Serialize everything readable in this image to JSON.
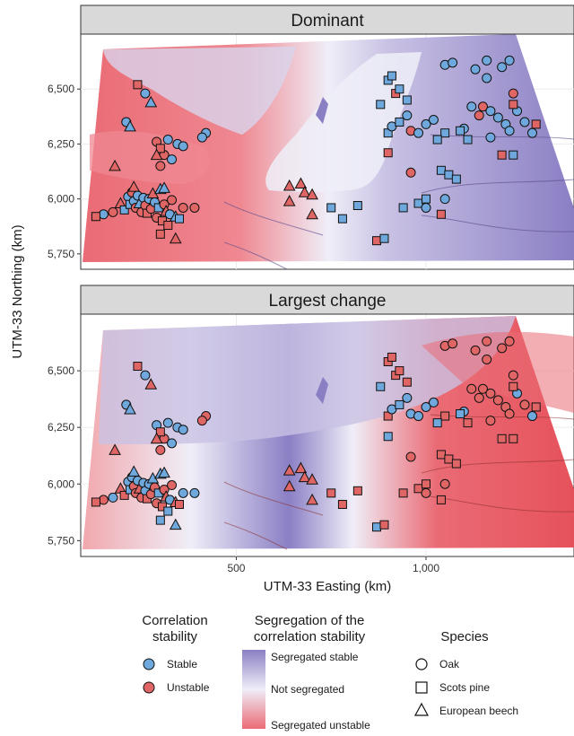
{
  "chart_data": {
    "type": "scatter",
    "panels": [
      {
        "title": "Dominant"
      },
      {
        "title": "Largest change"
      }
    ],
    "xlabel": "UTM-33 Easting (km)",
    "ylabel": "UTM-33 Northing (km)",
    "x_ticks": [
      {
        "value": 500,
        "label": "500"
      },
      {
        "value": 1000,
        "label": "1,000"
      }
    ],
    "y_ticks": [
      {
        "value": 6500,
        "label": "6,500"
      },
      {
        "value": 6250,
        "label": "6,250"
      },
      {
        "value": 6000,
        "label": "6,000"
      },
      {
        "value": 5750,
        "label": "5,750"
      }
    ],
    "xlim": [
      90,
      1390
    ],
    "ylim": [
      5680,
      6750
    ],
    "grid": true,
    "colors": {
      "stable": "#6fa8dc",
      "unstable": "#e06666",
      "segregated_stable": "#8b7fc4",
      "not_segregated": "#efeef8",
      "segregated_unstable": "#ea6b75"
    },
    "legend": {
      "stability": {
        "title": [
          "Correlation",
          "stability"
        ],
        "items": [
          {
            "label": "Stable",
            "key": "stable"
          },
          {
            "label": "Unstable",
            "key": "unstable"
          }
        ]
      },
      "segregation": {
        "title": [
          "Segregation of the",
          "correlation stability"
        ],
        "labels": [
          "Segregated stable",
          "Not segregated",
          "Segregated unstable"
        ]
      },
      "species": {
        "title": "Species",
        "items": [
          {
            "label": "Oak",
            "shape": "circle"
          },
          {
            "label": "Scots pine",
            "shape": "square"
          },
          {
            "label": "European beech",
            "shape": "triangle"
          }
        ]
      }
    },
    "points": [
      {
        "x": 260,
        "y": 6480,
        "sp": "circle",
        "s": [
          "stable",
          "stable"
        ]
      },
      {
        "x": 275,
        "y": 6440,
        "sp": "triangle",
        "s": [
          "stable",
          "unstable"
        ]
      },
      {
        "x": 210,
        "y": 6350,
        "sp": "circle",
        "s": [
          "stable",
          "stable"
        ]
      },
      {
        "x": 220,
        "y": 6330,
        "sp": "triangle",
        "s": [
          "stable",
          "stable"
        ]
      },
      {
        "x": 290,
        "y": 6260,
        "sp": "circle",
        "s": [
          "unstable",
          "stable"
        ]
      },
      {
        "x": 320,
        "y": 6270,
        "sp": "circle",
        "s": [
          "stable",
          "stable"
        ]
      },
      {
        "x": 345,
        "y": 6250,
        "sp": "circle",
        "s": [
          "stable",
          "stable"
        ]
      },
      {
        "x": 360,
        "y": 6240,
        "sp": "circle",
        "s": [
          "stable",
          "stable"
        ]
      },
      {
        "x": 310,
        "y": 6200,
        "sp": "circle",
        "s": [
          "unstable",
          "unstable"
        ]
      },
      {
        "x": 330,
        "y": 6180,
        "sp": "circle",
        "s": [
          "stable",
          "stable"
        ]
      },
      {
        "x": 300,
        "y": 6150,
        "sp": "circle",
        "s": [
          "unstable",
          "unstable"
        ]
      },
      {
        "x": 420,
        "y": 6300,
        "sp": "circle",
        "s": [
          "stable",
          "unstable"
        ]
      },
      {
        "x": 410,
        "y": 6280,
        "sp": "circle",
        "s": [
          "stable",
          "unstable"
        ]
      },
      {
        "x": 240,
        "y": 6520,
        "sp": "square",
        "s": [
          "unstable",
          "unstable"
        ]
      },
      {
        "x": 300,
        "y": 6230,
        "sp": "square",
        "s": [
          "unstable",
          "unstable"
        ]
      },
      {
        "x": 180,
        "y": 6150,
        "sp": "triangle",
        "s": [
          "unstable",
          "unstable"
        ]
      },
      {
        "x": 290,
        "y": 6200,
        "sp": "triangle",
        "s": [
          "unstable",
          "unstable"
        ]
      },
      {
        "x": 150,
        "y": 5930,
        "sp": "circle",
        "s": [
          "stable",
          "unstable"
        ]
      },
      {
        "x": 130,
        "y": 5920,
        "sp": "square",
        "s": [
          "unstable",
          "unstable"
        ]
      },
      {
        "x": 175,
        "y": 5940,
        "sp": "circle",
        "s": [
          "unstable",
          "stable"
        ]
      },
      {
        "x": 195,
        "y": 5980,
        "sp": "triangle",
        "s": [
          "unstable",
          "unstable"
        ]
      },
      {
        "x": 205,
        "y": 5950,
        "sp": "square",
        "s": [
          "stable",
          "unstable"
        ]
      },
      {
        "x": 215,
        "y": 6010,
        "sp": "circle",
        "s": [
          "stable",
          "stable"
        ]
      },
      {
        "x": 220,
        "y": 5975,
        "sp": "square",
        "s": [
          "stable",
          "stable"
        ]
      },
      {
        "x": 225,
        "y": 6030,
        "sp": "circle",
        "s": [
          "unstable",
          "stable"
        ]
      },
      {
        "x": 230,
        "y": 5990,
        "sp": "circle",
        "s": [
          "stable",
          "unstable"
        ]
      },
      {
        "x": 235,
        "y": 5960,
        "sp": "circle",
        "s": [
          "unstable",
          "unstable"
        ]
      },
      {
        "x": 240,
        "y": 6015,
        "sp": "circle",
        "s": [
          "stable",
          "stable"
        ]
      },
      {
        "x": 245,
        "y": 5980,
        "sp": "triangle",
        "s": [
          "stable",
          "unstable"
        ]
      },
      {
        "x": 250,
        "y": 5940,
        "sp": "circle",
        "s": [
          "unstable",
          "unstable"
        ]
      },
      {
        "x": 255,
        "y": 6005,
        "sp": "circle",
        "s": [
          "stable",
          "stable"
        ]
      },
      {
        "x": 260,
        "y": 5970,
        "sp": "circle",
        "s": [
          "unstable",
          "stable"
        ]
      },
      {
        "x": 265,
        "y": 5935,
        "sp": "square",
        "s": [
          "unstable",
          "unstable"
        ]
      },
      {
        "x": 270,
        "y": 6000,
        "sp": "circle",
        "s": [
          "stable",
          "stable"
        ]
      },
      {
        "x": 275,
        "y": 5955,
        "sp": "circle",
        "s": [
          "unstable",
          "unstable"
        ]
      },
      {
        "x": 280,
        "y": 6025,
        "sp": "triangle",
        "s": [
          "unstable",
          "stable"
        ]
      },
      {
        "x": 285,
        "y": 5985,
        "sp": "circle",
        "s": [
          "stable",
          "unstable"
        ]
      },
      {
        "x": 290,
        "y": 5915,
        "sp": "circle",
        "s": [
          "unstable",
          "unstable"
        ]
      },
      {
        "x": 295,
        "y": 5960,
        "sp": "square",
        "s": [
          "stable",
          "stable"
        ]
      },
      {
        "x": 300,
        "y": 6045,
        "sp": "triangle",
        "s": [
          "stable",
          "stable"
        ]
      },
      {
        "x": 305,
        "y": 5900,
        "sp": "square",
        "s": [
          "unstable",
          "unstable"
        ]
      },
      {
        "x": 310,
        "y": 5975,
        "sp": "circle",
        "s": [
          "unstable",
          "unstable"
        ]
      },
      {
        "x": 315,
        "y": 5945,
        "sp": "triangle",
        "s": [
          "unstable",
          "unstable"
        ]
      },
      {
        "x": 320,
        "y": 5880,
        "sp": "square",
        "s": [
          "unstable",
          "stable"
        ]
      },
      {
        "x": 325,
        "y": 5930,
        "sp": "circle",
        "s": [
          "stable",
          "stable"
        ]
      },
      {
        "x": 330,
        "y": 5995,
        "sp": "circle",
        "s": [
          "unstable",
          "unstable"
        ]
      },
      {
        "x": 340,
        "y": 5920,
        "sp": "triangle",
        "s": [
          "stable",
          "unstable"
        ]
      },
      {
        "x": 300,
        "y": 5840,
        "sp": "square",
        "s": [
          "unstable",
          "stable"
        ]
      },
      {
        "x": 340,
        "y": 5820,
        "sp": "triangle",
        "s": [
          "unstable",
          "stable"
        ]
      },
      {
        "x": 350,
        "y": 5910,
        "sp": "square",
        "s": [
          "stable",
          "unstable"
        ]
      },
      {
        "x": 360,
        "y": 5960,
        "sp": "circle",
        "s": [
          "unstable",
          "stable"
        ]
      },
      {
        "x": 390,
        "y": 5960,
        "sp": "circle",
        "s": [
          "unstable",
          "stable"
        ]
      },
      {
        "x": 230,
        "y": 6055,
        "sp": "triangle",
        "s": [
          "unstable",
          "stable"
        ]
      },
      {
        "x": 310,
        "y": 6050,
        "sp": "triangle",
        "s": [
          "stable",
          "stable"
        ]
      },
      {
        "x": 640,
        "y": 6060,
        "sp": "triangle",
        "s": [
          "unstable",
          "unstable"
        ]
      },
      {
        "x": 670,
        "y": 6070,
        "sp": "triangle",
        "s": [
          "unstable",
          "unstable"
        ]
      },
      {
        "x": 680,
        "y": 6030,
        "sp": "triangle",
        "s": [
          "unstable",
          "unstable"
        ]
      },
      {
        "x": 700,
        "y": 6020,
        "sp": "triangle",
        "s": [
          "unstable",
          "unstable"
        ]
      },
      {
        "x": 640,
        "y": 5990,
        "sp": "triangle",
        "s": [
          "unstable",
          "unstable"
        ]
      },
      {
        "x": 700,
        "y": 5930,
        "sp": "triangle",
        "s": [
          "unstable",
          "unstable"
        ]
      },
      {
        "x": 750,
        "y": 5960,
        "sp": "square",
        "s": [
          "stable",
          "unstable"
        ]
      },
      {
        "x": 780,
        "y": 5910,
        "sp": "square",
        "s": [
          "stable",
          "unstable"
        ]
      },
      {
        "x": 820,
        "y": 5970,
        "sp": "square",
        "s": [
          "stable",
          "unstable"
        ]
      },
      {
        "x": 870,
        "y": 5810,
        "sp": "square",
        "s": [
          "unstable",
          "stable"
        ]
      },
      {
        "x": 890,
        "y": 5820,
        "sp": "square",
        "s": [
          "stable",
          "unstable"
        ]
      },
      {
        "x": 940,
        "y": 5960,
        "sp": "square",
        "s": [
          "stable",
          "unstable"
        ]
      },
      {
        "x": 980,
        "y": 5980,
        "sp": "square",
        "s": [
          "stable",
          "unstable"
        ]
      },
      {
        "x": 1000,
        "y": 6000,
        "sp": "square",
        "s": [
          "stable",
          "unstable"
        ]
      },
      {
        "x": 1040,
        "y": 5930,
        "sp": "square",
        "s": [
          "unstable",
          "unstable"
        ]
      },
      {
        "x": 1000,
        "y": 5960,
        "sp": "circle",
        "s": [
          "stable",
          "unstable"
        ]
      },
      {
        "x": 1050,
        "y": 6000,
        "sp": "circle",
        "s": [
          "stable",
          "unstable"
        ]
      },
      {
        "x": 960,
        "y": 6120,
        "sp": "circle",
        "s": [
          "unstable",
          "unstable"
        ]
      },
      {
        "x": 1040,
        "y": 6130,
        "sp": "square",
        "s": [
          "stable",
          "unstable"
        ]
      },
      {
        "x": 1060,
        "y": 6110,
        "sp": "square",
        "s": [
          "stable",
          "unstable"
        ]
      },
      {
        "x": 1080,
        "y": 6090,
        "sp": "square",
        "s": [
          "stable",
          "unstable"
        ]
      },
      {
        "x": 1200,
        "y": 6200,
        "sp": "square",
        "s": [
          "unstable",
          "unstable"
        ]
      },
      {
        "x": 1230,
        "y": 6200,
        "sp": "square",
        "s": [
          "stable",
          "unstable"
        ]
      },
      {
        "x": 900,
        "y": 6210,
        "sp": "square",
        "s": [
          "unstable",
          "stable"
        ]
      },
      {
        "x": 900,
        "y": 6300,
        "sp": "square",
        "s": [
          "stable",
          "unstable"
        ]
      },
      {
        "x": 910,
        "y": 6330,
        "sp": "circle",
        "s": [
          "stable",
          "stable"
        ]
      },
      {
        "x": 930,
        "y": 6350,
        "sp": "square",
        "s": [
          "stable",
          "stable"
        ]
      },
      {
        "x": 950,
        "y": 6380,
        "sp": "circle",
        "s": [
          "stable",
          "stable"
        ]
      },
      {
        "x": 960,
        "y": 6310,
        "sp": "circle",
        "s": [
          "unstable",
          "stable"
        ]
      },
      {
        "x": 980,
        "y": 6300,
        "sp": "circle",
        "s": [
          "stable",
          "stable"
        ]
      },
      {
        "x": 1000,
        "y": 6340,
        "sp": "circle",
        "s": [
          "stable",
          "stable"
        ]
      },
      {
        "x": 1020,
        "y": 6360,
        "sp": "circle",
        "s": [
          "stable",
          "stable"
        ]
      },
      {
        "x": 1050,
        "y": 6300,
        "sp": "square",
        "s": [
          "stable",
          "unstable"
        ]
      },
      {
        "x": 880,
        "y": 6430,
        "sp": "square",
        "s": [
          "stable",
          "stable"
        ]
      },
      {
        "x": 920,
        "y": 6480,
        "sp": "square",
        "s": [
          "unstable",
          "unstable"
        ]
      },
      {
        "x": 900,
        "y": 6540,
        "sp": "square",
        "s": [
          "stable",
          "unstable"
        ]
      },
      {
        "x": 910,
        "y": 6560,
        "sp": "square",
        "s": [
          "stable",
          "unstable"
        ]
      },
      {
        "x": 930,
        "y": 6500,
        "sp": "square",
        "s": [
          "stable",
          "unstable"
        ]
      },
      {
        "x": 950,
        "y": 6450,
        "sp": "square",
        "s": [
          "stable",
          "unstable"
        ]
      },
      {
        "x": 1050,
        "y": 6610,
        "sp": "circle",
        "s": [
          "stable",
          "unstable"
        ]
      },
      {
        "x": 1070,
        "y": 6620,
        "sp": "circle",
        "s": [
          "stable",
          "unstable"
        ]
      },
      {
        "x": 1130,
        "y": 6590,
        "sp": "circle",
        "s": [
          "stable",
          "unstable"
        ]
      },
      {
        "x": 1160,
        "y": 6630,
        "sp": "circle",
        "s": [
          "stable",
          "unstable"
        ]
      },
      {
        "x": 1200,
        "y": 6600,
        "sp": "circle",
        "s": [
          "stable",
          "unstable"
        ]
      },
      {
        "x": 1220,
        "y": 6630,
        "sp": "circle",
        "s": [
          "stable",
          "unstable"
        ]
      },
      {
        "x": 1160,
        "y": 6550,
        "sp": "circle",
        "s": [
          "stable",
          "unstable"
        ]
      },
      {
        "x": 1230,
        "y": 6480,
        "sp": "circle",
        "s": [
          "unstable",
          "unstable"
        ]
      },
      {
        "x": 1120,
        "y": 6420,
        "sp": "circle",
        "s": [
          "stable",
          "unstable"
        ]
      },
      {
        "x": 1140,
        "y": 6380,
        "sp": "circle",
        "s": [
          "unstable",
          "unstable"
        ]
      },
      {
        "x": 1150,
        "y": 6420,
        "sp": "circle",
        "s": [
          "unstable",
          "unstable"
        ]
      },
      {
        "x": 1170,
        "y": 6400,
        "sp": "circle",
        "s": [
          "stable",
          "unstable"
        ]
      },
      {
        "x": 1190,
        "y": 6370,
        "sp": "circle",
        "s": [
          "stable",
          "unstable"
        ]
      },
      {
        "x": 1210,
        "y": 6340,
        "sp": "circle",
        "s": [
          "stable",
          "unstable"
        ]
      },
      {
        "x": 1220,
        "y": 6310,
        "sp": "circle",
        "s": [
          "stable",
          "unstable"
        ]
      },
      {
        "x": 1240,
        "y": 6400,
        "sp": "circle",
        "s": [
          "stable",
          "stable"
        ]
      },
      {
        "x": 1260,
        "y": 6350,
        "sp": "circle",
        "s": [
          "stable",
          "unstable"
        ]
      },
      {
        "x": 1280,
        "y": 6300,
        "sp": "circle",
        "s": [
          "stable",
          "stable"
        ]
      },
      {
        "x": 1100,
        "y": 6320,
        "sp": "circle",
        "s": [
          "stable",
          "stable"
        ]
      },
      {
        "x": 1170,
        "y": 6280,
        "sp": "circle",
        "s": [
          "stable",
          "unstable"
        ]
      },
      {
        "x": 1290,
        "y": 6340,
        "sp": "square",
        "s": [
          "unstable",
          "unstable"
        ]
      },
      {
        "x": 1030,
        "y": 6270,
        "sp": "square",
        "s": [
          "stable",
          "stable"
        ]
      },
      {
        "x": 1090,
        "y": 6310,
        "sp": "square",
        "s": [
          "stable",
          "stable"
        ]
      },
      {
        "x": 1110,
        "y": 6270,
        "sp": "square",
        "s": [
          "stable",
          "unstable"
        ]
      },
      {
        "x": 1230,
        "y": 6430,
        "sp": "square",
        "s": [
          "unstable",
          "unstable"
        ]
      }
    ]
  }
}
